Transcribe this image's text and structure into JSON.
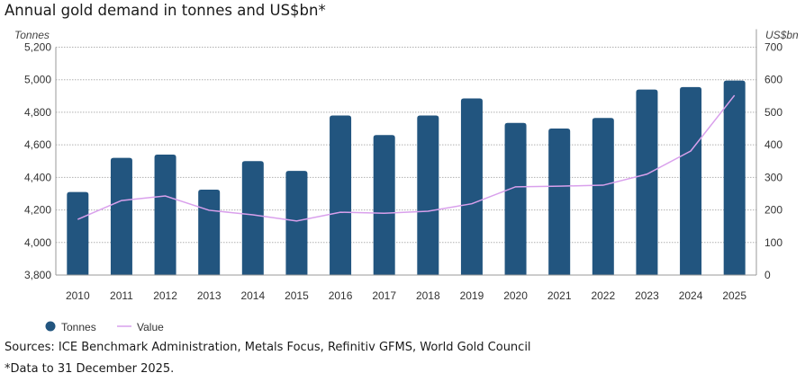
{
  "title": "Annual gold demand in tonnes and US$bn*",
  "footer": {
    "sources": "Sources: ICE Benchmark Administration, Metals Focus, Refinitiv GFMS, World Gold Council",
    "note": "*Data to 31 December 2025."
  },
  "colors": {
    "bar": "#22557f",
    "line": "#d9a0ec",
    "grid": "#b0b0b0",
    "axis": "#999999"
  },
  "chart_data": {
    "type": "bar",
    "title": "Annual gold demand in tonnes and US$bn*",
    "categories": [
      "2010",
      "2011",
      "2012",
      "2013",
      "2014",
      "2015",
      "2016",
      "2017",
      "2018",
      "2019",
      "2020",
      "2021",
      "2022",
      "2023",
      "2024",
      "2025"
    ],
    "series": [
      {
        "name": "Tonnes",
        "type": "bar",
        "axis": "left",
        "values": [
          4310,
          4520,
          4540,
          4325,
          4500,
          4440,
          4780,
          4660,
          4780,
          4885,
          4735,
          4700,
          4765,
          4940,
          4955,
          4995
        ]
      },
      {
        "name": "Value",
        "type": "line",
        "axis": "right",
        "values": [
          171,
          229,
          243,
          199,
          185,
          166,
          193,
          190,
          196,
          219,
          271,
          273,
          276,
          310,
          381,
          552
        ]
      }
    ],
    "left_axis": {
      "label": "Tonnes",
      "range": [
        3800,
        5200
      ],
      "ticks": [
        3800,
        4000,
        4200,
        4400,
        4600,
        4800,
        5000,
        5200
      ],
      "tick_labels": [
        "3,800",
        "4,000",
        "4,200",
        "4,400",
        "4,600",
        "4,800",
        "5,000",
        "5,200"
      ]
    },
    "right_axis": {
      "label": "US$bn",
      "range": [
        0,
        700
      ],
      "ticks": [
        0,
        100,
        200,
        300,
        400,
        500,
        600,
        700
      ],
      "tick_labels": [
        "0",
        "100",
        "200",
        "300",
        "400",
        "500",
        "600",
        "700"
      ]
    },
    "grid": true,
    "legend": {
      "position": "bottom-left",
      "entries": [
        "Tonnes",
        "Value"
      ]
    }
  }
}
